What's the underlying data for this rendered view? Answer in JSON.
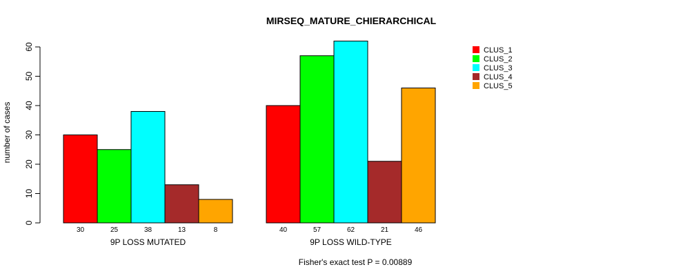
{
  "chart_data": {
    "type": "bar",
    "title": "MIRSEQ_MATURE_CHIERARCHICAL",
    "ylabel": "number of cases",
    "xlabel": "",
    "ylim": [
      0,
      60
    ],
    "yticks": [
      0,
      10,
      20,
      30,
      40,
      50,
      60
    ],
    "categories": [
      "9P LOSS MUTATED",
      "9P LOSS WILD-TYPE"
    ],
    "series": [
      {
        "name": "CLUS_1",
        "color": "#ff0000",
        "values": [
          30,
          40
        ]
      },
      {
        "name": "CLUS_2",
        "color": "#00ff00",
        "values": [
          25,
          57
        ]
      },
      {
        "name": "CLUS_3",
        "color": "#00ffff",
        "values": [
          38,
          62
        ]
      },
      {
        "name": "CLUS_4",
        "color": "#a52a2a",
        "values": [
          13,
          21
        ]
      },
      {
        "name": "CLUS_5",
        "color": "#ffa500",
        "values": [
          8,
          46
        ]
      }
    ],
    "legend_position": "top-right",
    "grid": false,
    "footnote": "Fisher's exact test P = 0.00889"
  }
}
